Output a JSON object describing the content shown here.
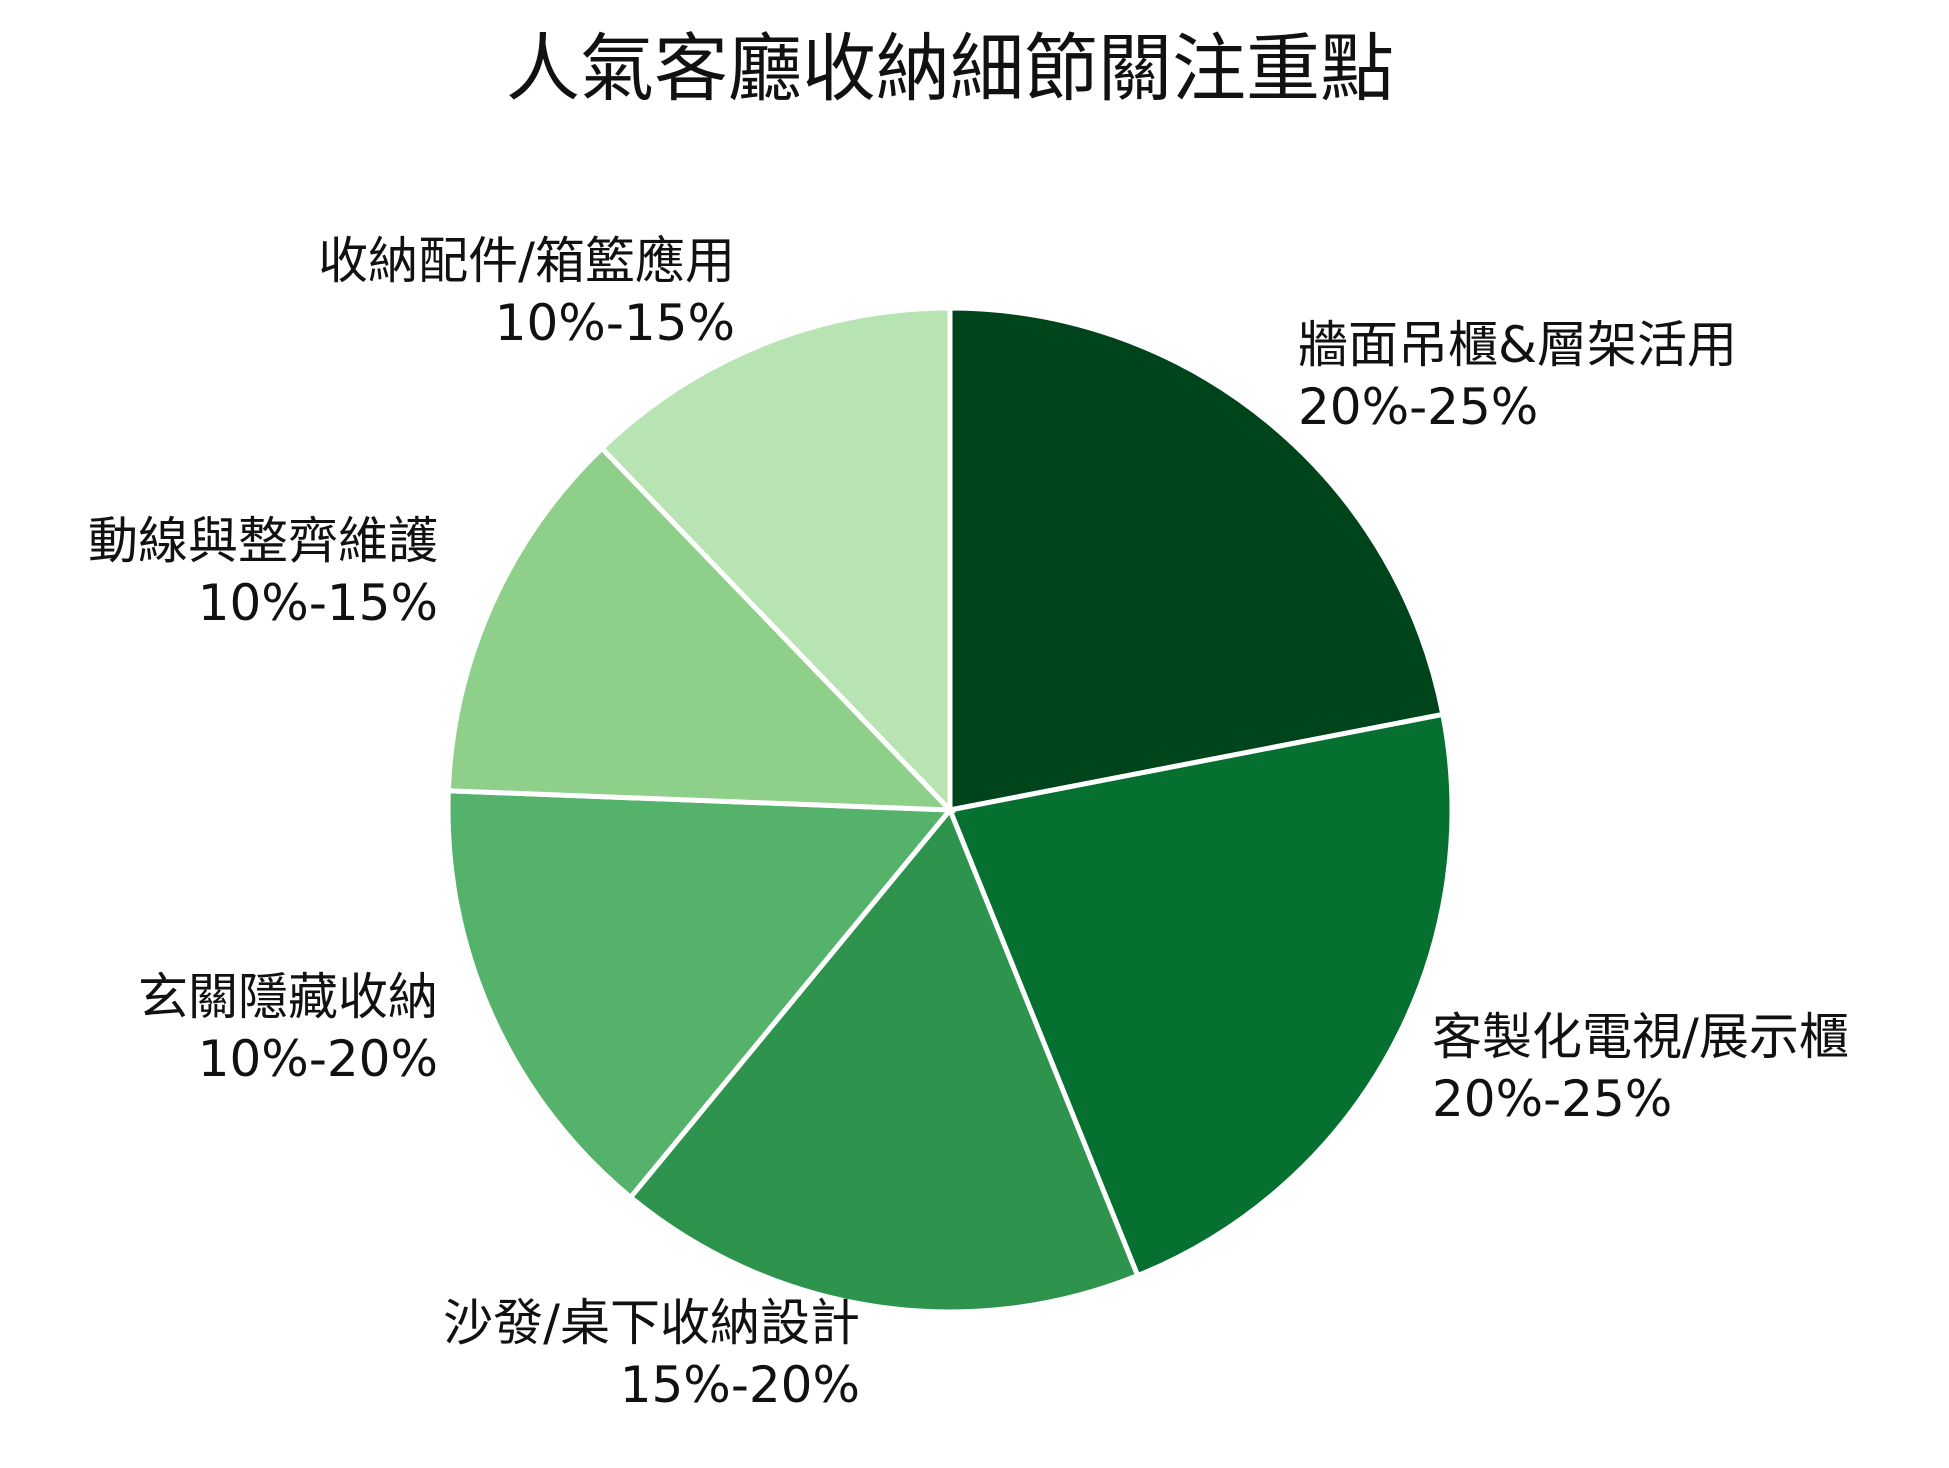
{
  "chart_data": {
    "type": "pie",
    "title": "人氣客廳收納細節關注重點",
    "slices": [
      {
        "label": "牆面吊櫃&層架活用",
        "range": "20%-25%",
        "value": 22.5,
        "color": "#00441b"
      },
      {
        "label": "客製化電視/展示櫃",
        "range": "20%-25%",
        "value": 22.5,
        "color": "#067030"
      },
      {
        "label": "沙發/桌下收納設計",
        "range": "15%-20%",
        "value": 17.5,
        "color": "#2d934d"
      },
      {
        "label": "玄關隱藏收納",
        "range": "10%-20%",
        "value": 15.0,
        "color": "#55b26a"
      },
      {
        "label": "動線與整齊維護",
        "range": "10%-15%",
        "value": 12.5,
        "color": "#8ecf8a"
      },
      {
        "label": "收納配件/箱籃應用",
        "range": "10%-15%",
        "value": 12.5,
        "color": "#b8e3b3"
      }
    ],
    "start_angle": "top, clockwise",
    "legend": "none"
  }
}
